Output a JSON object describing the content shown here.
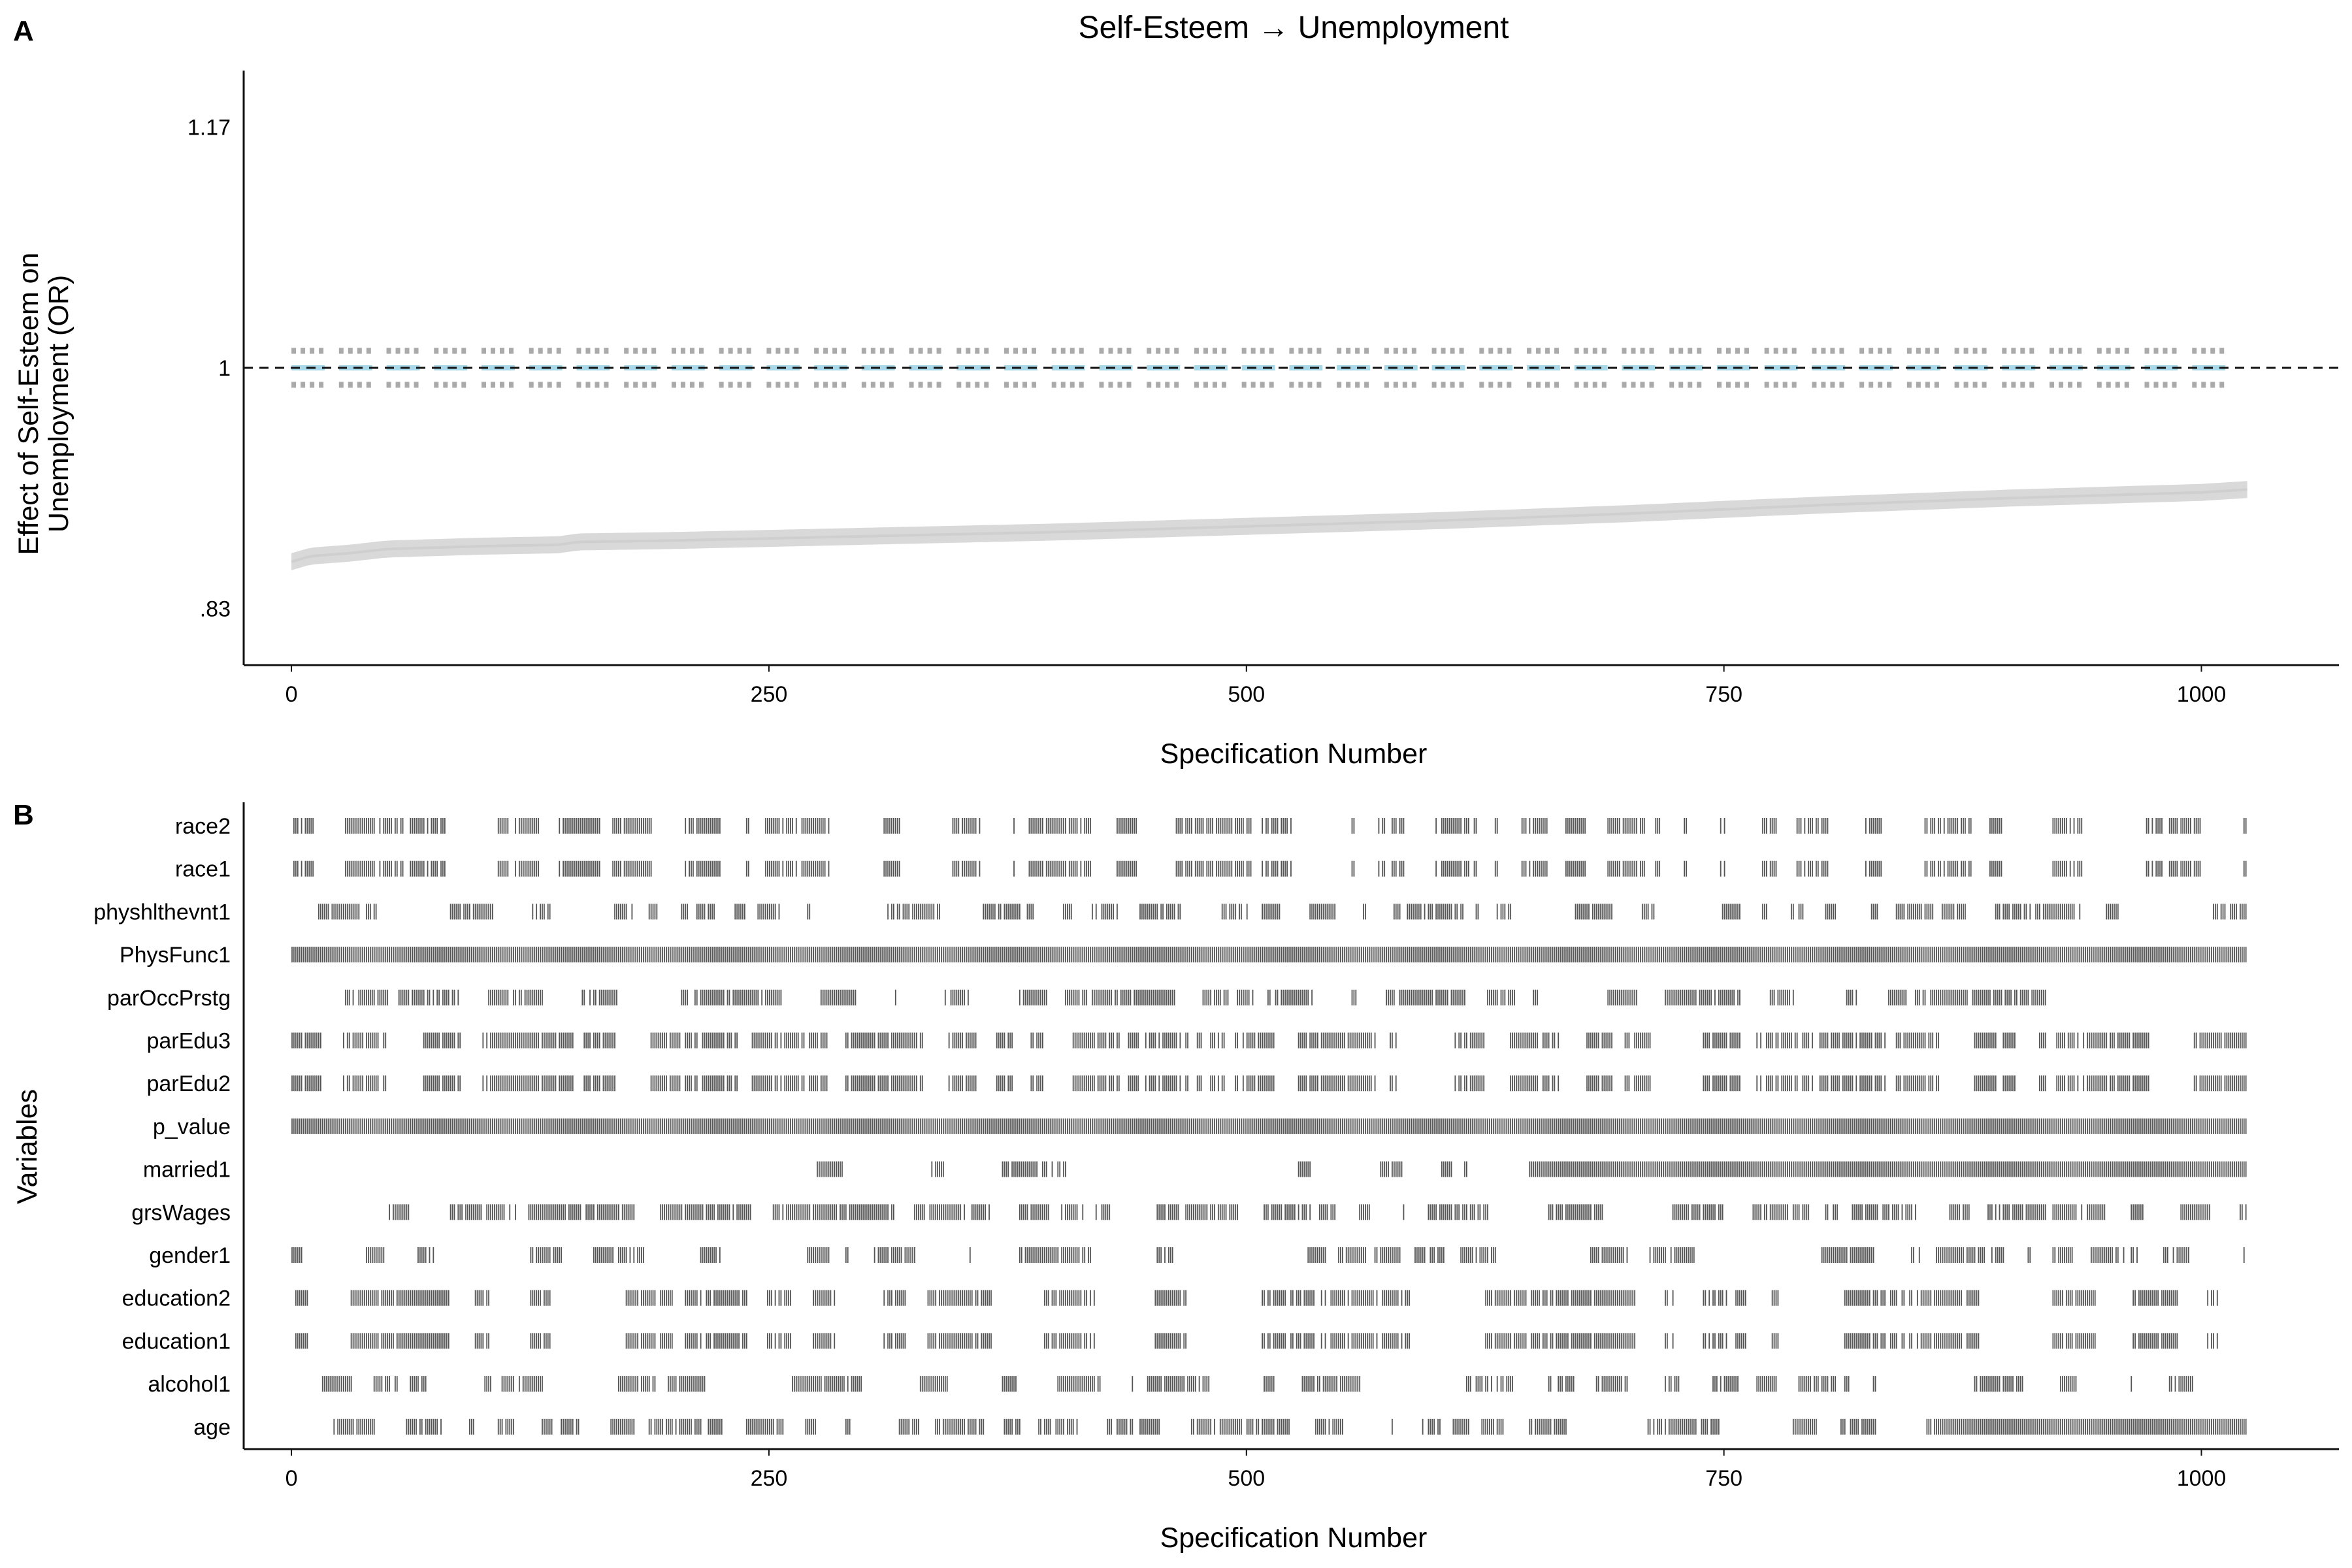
{
  "chart_data": [
    {
      "panel": "A",
      "type": "line",
      "title": "Self-Esteem → Unemployment",
      "xlabel": "Specification Number",
      "ylabel_lines": [
        "Effect of Self-Esteem on",
        "Unemployment (OR)"
      ],
      "xlim": [
        -25,
        1072
      ],
      "ylim": [
        0.79,
        1.21
      ],
      "x_ticks": [
        0,
        250,
        500,
        750,
        1000
      ],
      "x_tick_labels": [
        "0",
        "250",
        "500",
        "750",
        "1000"
      ],
      "y_ticks": [
        0.83,
        1,
        1.17
      ],
      "y_tick_labels": [
        ".83",
        "1",
        "1.17"
      ],
      "reference_line": 1,
      "n_specifications": 1024,
      "estimate_curve": {
        "x": [
          0,
          10,
          30,
          50,
          100,
          140,
          150,
          200,
          300,
          400,
          500,
          600,
          700,
          800,
          900,
          1000,
          1024
        ],
        "y": [
          0.863,
          0.867,
          0.869,
          0.872,
          0.874,
          0.875,
          0.877,
          0.878,
          0.881,
          0.884,
          0.888,
          0.892,
          0.897,
          0.903,
          0.908,
          0.912,
          0.914
        ]
      },
      "ci_band_halfwidth": 0.006,
      "null_band": {
        "center": 1,
        "upper": 1.012,
        "lower": 0.988,
        "x_start": 0,
        "x_end": 1020,
        "dash_count": 41
      },
      "grid": false,
      "colors": {
        "estimate": "#d9d9d9",
        "null_ci": "#aaaaaa",
        "null_center": "#a8d8e8",
        "refline": "#111111",
        "axis": "#111111"
      }
    },
    {
      "panel": "B",
      "type": "table",
      "xlabel": "Specification Number",
      "ylabel": "Variables",
      "xlim": [
        -25,
        1072
      ],
      "x_ticks": [
        0,
        250,
        500,
        750,
        1000
      ],
      "x_tick_labels": [
        "0",
        "250",
        "500",
        "750",
        "1000"
      ],
      "n_specifications": 1024,
      "bar_color": "#555555",
      "variables": [
        {
          "name": "race2",
          "pattern": "cluster",
          "density": 0.62,
          "seed": 3
        },
        {
          "name": "race1",
          "pattern": "cluster",
          "density": 0.62,
          "seed": 3
        },
        {
          "name": "physhlthevnt1",
          "pattern": "cluster",
          "density": 0.48,
          "seed": 11
        },
        {
          "name": "PhysFunc1",
          "pattern": "full"
        },
        {
          "name": "parOccPrstg",
          "pattern": "cluster",
          "density": 0.5,
          "seed": 19,
          "end": 945
        },
        {
          "name": "parEdu3",
          "pattern": "cluster",
          "density": 0.7,
          "seed": 27
        },
        {
          "name": "parEdu2",
          "pattern": "cluster",
          "density": 0.7,
          "seed": 27
        },
        {
          "name": "p_value",
          "pattern": "full"
        },
        {
          "name": "married1",
          "pattern": "cluster",
          "density": 0.3,
          "seed": 35,
          "start": 248,
          "solid_from": 648
        },
        {
          "name": "grsWages",
          "pattern": "cluster",
          "density": 0.55,
          "seed": 43,
          "start": 25
        },
        {
          "name": "gender1",
          "pattern": "cluster",
          "density": 0.55,
          "seed": 51
        },
        {
          "name": "education2",
          "pattern": "cluster",
          "density": 0.55,
          "seed": 59
        },
        {
          "name": "education1",
          "pattern": "cluster",
          "density": 0.55,
          "seed": 59
        },
        {
          "name": "alcohol1",
          "pattern": "cluster",
          "density": 0.5,
          "seed": 67,
          "end": 1008
        },
        {
          "name": "age",
          "pattern": "cluster",
          "density": 0.45,
          "seed": 75,
          "start": 22,
          "solid_from": 862
        }
      ]
    }
  ],
  "panel_labels": [
    "A",
    "B"
  ]
}
